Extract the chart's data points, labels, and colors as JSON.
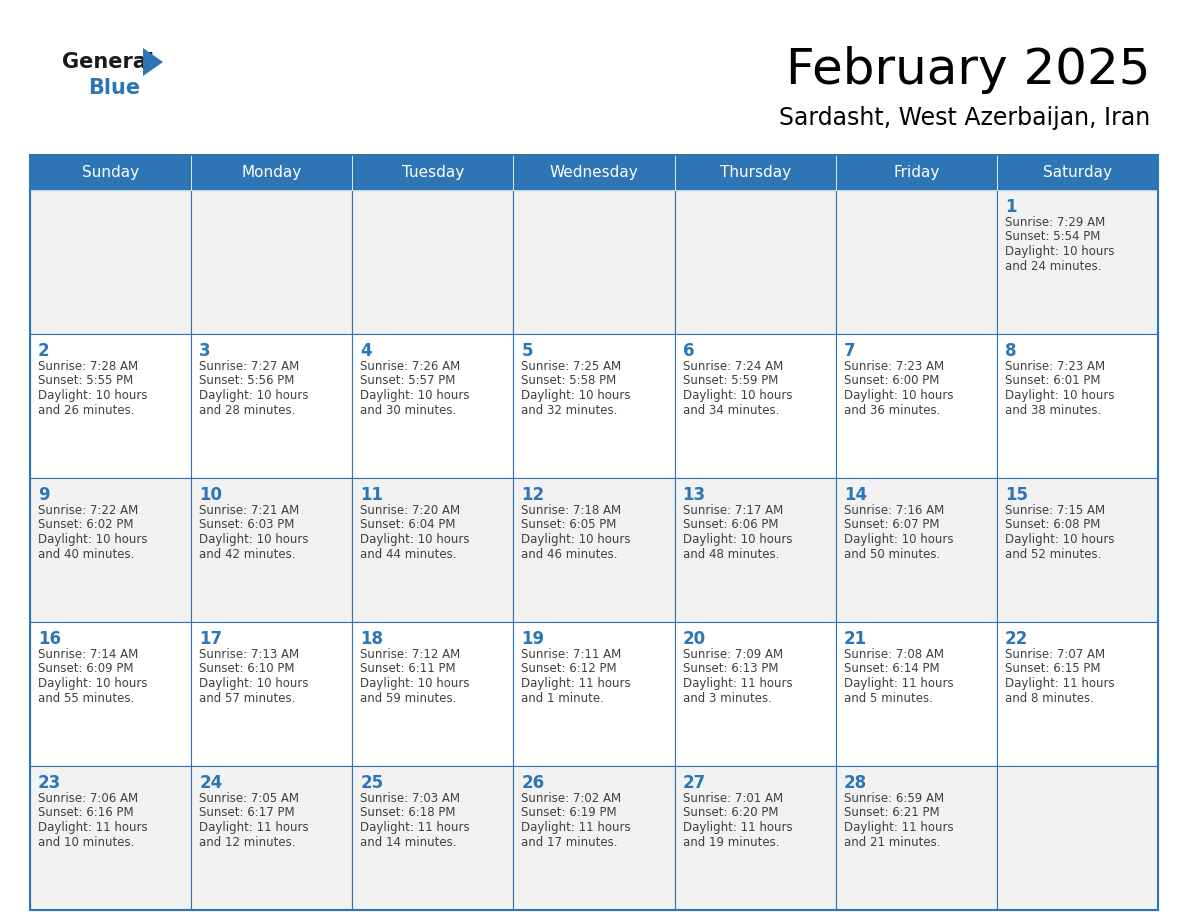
{
  "title": "February 2025",
  "subtitle": "Sardasht, West Azerbaijan, Iran",
  "header_bg": "#2E75B6",
  "header_text_color": "#FFFFFF",
  "cell_bg_odd": "#F2F2F2",
  "cell_bg_even": "#FFFFFF",
  "day_number_color": "#2E75B6",
  "info_text_color": "#404040",
  "grid_line_color": "#2E75B6",
  "days_of_week": [
    "Sunday",
    "Monday",
    "Tuesday",
    "Wednesday",
    "Thursday",
    "Friday",
    "Saturday"
  ],
  "weeks": [
    [
      {
        "day": null,
        "sunrise": null,
        "sunset": null,
        "daylight_line1": null,
        "daylight_line2": null
      },
      {
        "day": null,
        "sunrise": null,
        "sunset": null,
        "daylight_line1": null,
        "daylight_line2": null
      },
      {
        "day": null,
        "sunrise": null,
        "sunset": null,
        "daylight_line1": null,
        "daylight_line2": null
      },
      {
        "day": null,
        "sunrise": null,
        "sunset": null,
        "daylight_line1": null,
        "daylight_line2": null
      },
      {
        "day": null,
        "sunrise": null,
        "sunset": null,
        "daylight_line1": null,
        "daylight_line2": null
      },
      {
        "day": null,
        "sunrise": null,
        "sunset": null,
        "daylight_line1": null,
        "daylight_line2": null
      },
      {
        "day": 1,
        "sunrise": "7:29 AM",
        "sunset": "5:54 PM",
        "daylight_line1": "10 hours",
        "daylight_line2": "and 24 minutes."
      }
    ],
    [
      {
        "day": 2,
        "sunrise": "7:28 AM",
        "sunset": "5:55 PM",
        "daylight_line1": "10 hours",
        "daylight_line2": "and 26 minutes."
      },
      {
        "day": 3,
        "sunrise": "7:27 AM",
        "sunset": "5:56 PM",
        "daylight_line1": "10 hours",
        "daylight_line2": "and 28 minutes."
      },
      {
        "day": 4,
        "sunrise": "7:26 AM",
        "sunset": "5:57 PM",
        "daylight_line1": "10 hours",
        "daylight_line2": "and 30 minutes."
      },
      {
        "day": 5,
        "sunrise": "7:25 AM",
        "sunset": "5:58 PM",
        "daylight_line1": "10 hours",
        "daylight_line2": "and 32 minutes."
      },
      {
        "day": 6,
        "sunrise": "7:24 AM",
        "sunset": "5:59 PM",
        "daylight_line1": "10 hours",
        "daylight_line2": "and 34 minutes."
      },
      {
        "day": 7,
        "sunrise": "7:23 AM",
        "sunset": "6:00 PM",
        "daylight_line1": "10 hours",
        "daylight_line2": "and 36 minutes."
      },
      {
        "day": 8,
        "sunrise": "7:23 AM",
        "sunset": "6:01 PM",
        "daylight_line1": "10 hours",
        "daylight_line2": "and 38 minutes."
      }
    ],
    [
      {
        "day": 9,
        "sunrise": "7:22 AM",
        "sunset": "6:02 PM",
        "daylight_line1": "10 hours",
        "daylight_line2": "and 40 minutes."
      },
      {
        "day": 10,
        "sunrise": "7:21 AM",
        "sunset": "6:03 PM",
        "daylight_line1": "10 hours",
        "daylight_line2": "and 42 minutes."
      },
      {
        "day": 11,
        "sunrise": "7:20 AM",
        "sunset": "6:04 PM",
        "daylight_line1": "10 hours",
        "daylight_line2": "and 44 minutes."
      },
      {
        "day": 12,
        "sunrise": "7:18 AM",
        "sunset": "6:05 PM",
        "daylight_line1": "10 hours",
        "daylight_line2": "and 46 minutes."
      },
      {
        "day": 13,
        "sunrise": "7:17 AM",
        "sunset": "6:06 PM",
        "daylight_line1": "10 hours",
        "daylight_line2": "and 48 minutes."
      },
      {
        "day": 14,
        "sunrise": "7:16 AM",
        "sunset": "6:07 PM",
        "daylight_line1": "10 hours",
        "daylight_line2": "and 50 minutes."
      },
      {
        "day": 15,
        "sunrise": "7:15 AM",
        "sunset": "6:08 PM",
        "daylight_line1": "10 hours",
        "daylight_line2": "and 52 minutes."
      }
    ],
    [
      {
        "day": 16,
        "sunrise": "7:14 AM",
        "sunset": "6:09 PM",
        "daylight_line1": "10 hours",
        "daylight_line2": "and 55 minutes."
      },
      {
        "day": 17,
        "sunrise": "7:13 AM",
        "sunset": "6:10 PM",
        "daylight_line1": "10 hours",
        "daylight_line2": "and 57 minutes."
      },
      {
        "day": 18,
        "sunrise": "7:12 AM",
        "sunset": "6:11 PM",
        "daylight_line1": "10 hours",
        "daylight_line2": "and 59 minutes."
      },
      {
        "day": 19,
        "sunrise": "7:11 AM",
        "sunset": "6:12 PM",
        "daylight_line1": "11 hours",
        "daylight_line2": "and 1 minute."
      },
      {
        "day": 20,
        "sunrise": "7:09 AM",
        "sunset": "6:13 PM",
        "daylight_line1": "11 hours",
        "daylight_line2": "and 3 minutes."
      },
      {
        "day": 21,
        "sunrise": "7:08 AM",
        "sunset": "6:14 PM",
        "daylight_line1": "11 hours",
        "daylight_line2": "and 5 minutes."
      },
      {
        "day": 22,
        "sunrise": "7:07 AM",
        "sunset": "6:15 PM",
        "daylight_line1": "11 hours",
        "daylight_line2": "and 8 minutes."
      }
    ],
    [
      {
        "day": 23,
        "sunrise": "7:06 AM",
        "sunset": "6:16 PM",
        "daylight_line1": "11 hours",
        "daylight_line2": "and 10 minutes."
      },
      {
        "day": 24,
        "sunrise": "7:05 AM",
        "sunset": "6:17 PM",
        "daylight_line1": "11 hours",
        "daylight_line2": "and 12 minutes."
      },
      {
        "day": 25,
        "sunrise": "7:03 AM",
        "sunset": "6:18 PM",
        "daylight_line1": "11 hours",
        "daylight_line2": "and 14 minutes."
      },
      {
        "day": 26,
        "sunrise": "7:02 AM",
        "sunset": "6:19 PM",
        "daylight_line1": "11 hours",
        "daylight_line2": "and 17 minutes."
      },
      {
        "day": 27,
        "sunrise": "7:01 AM",
        "sunset": "6:20 PM",
        "daylight_line1": "11 hours",
        "daylight_line2": "and 19 minutes."
      },
      {
        "day": 28,
        "sunrise": "6:59 AM",
        "sunset": "6:21 PM",
        "daylight_line1": "11 hours",
        "daylight_line2": "and 21 minutes."
      },
      {
        "day": null,
        "sunrise": null,
        "sunset": null,
        "daylight_line1": null,
        "daylight_line2": null
      }
    ]
  ],
  "logo_triangle_color": "#2E75B6",
  "title_fontsize": 36,
  "subtitle_fontsize": 17,
  "header_fontsize": 11,
  "day_num_fontsize": 12,
  "info_fontsize": 8.5
}
